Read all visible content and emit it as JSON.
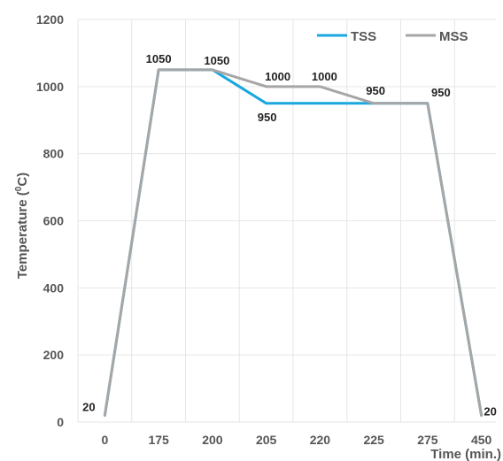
{
  "chart_data": {
    "type": "line",
    "title": "",
    "xlabel": "Time (min.)",
    "ylabel_main": "Temperature (",
    "ylabel_sup": "0",
    "ylabel_end": "C)",
    "categories": [
      "0",
      "175",
      "200",
      "205",
      "220",
      "225",
      "275",
      "450"
    ],
    "ylim": [
      0,
      1200
    ],
    "yticks": [
      0,
      200,
      400,
      600,
      800,
      1000,
      1200
    ],
    "grid": true,
    "legend_position": "top-right",
    "series": [
      {
        "name": "TSS",
        "color": "#1aa7e0",
        "values": [
          20,
          1050,
          1050,
          950,
          950,
          950,
          950,
          20
        ]
      },
      {
        "name": "MSS",
        "color": "#a6a6a6",
        "values": [
          20,
          1050,
          1050,
          1000,
          1000,
          950,
          950,
          20
        ]
      }
    ],
    "data_labels": [
      {
        "text": "20",
        "index": 0,
        "value": 20
      },
      {
        "text": "1050",
        "index": 1,
        "value": 1050
      },
      {
        "text": "1050",
        "index": 2,
        "value": 1050
      },
      {
        "text": "1000",
        "index": 3,
        "value": 1000
      },
      {
        "text": "950",
        "index": 3,
        "value": 950
      },
      {
        "text": "1000",
        "index": 4,
        "value": 1000
      },
      {
        "text": "950",
        "index": 5,
        "value": 950
      },
      {
        "text": "950",
        "index": 6,
        "value": 950
      },
      {
        "text": "20",
        "index": 7,
        "value": 20
      }
    ]
  }
}
